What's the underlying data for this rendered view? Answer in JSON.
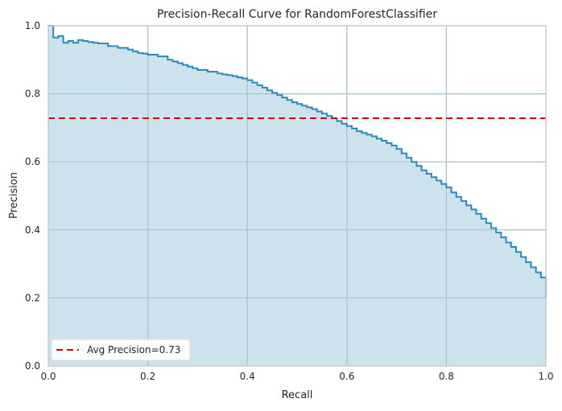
{
  "chart_data": {
    "type": "area",
    "title": "Precision-Recall Curve for RandomForestClassifier",
    "xlabel": "Recall",
    "ylabel": "Precision",
    "xlim": [
      0.0,
      1.0
    ],
    "ylim": [
      0.0,
      1.0
    ],
    "xticks": [
      "0.0",
      "0.2",
      "0.4",
      "0.6",
      "0.8",
      "1.0"
    ],
    "yticks": [
      "0.0",
      "0.2",
      "0.4",
      "0.6",
      "0.8",
      "1.0"
    ],
    "grid": true,
    "step": "post",
    "legend_position": "lower-left",
    "series": [
      {
        "type": "area-step",
        "color": "#2a8bb8",
        "fill_color": "#cde2ec",
        "x": [
          0.0,
          0.01,
          0.02,
          0.03,
          0.04,
          0.05,
          0.06,
          0.07,
          0.08,
          0.09,
          0.1,
          0.12,
          0.14,
          0.16,
          0.17,
          0.18,
          0.19,
          0.2,
          0.22,
          0.24,
          0.25,
          0.26,
          0.27,
          0.28,
          0.29,
          0.3,
          0.32,
          0.34,
          0.35,
          0.36,
          0.37,
          0.38,
          0.39,
          0.4,
          0.41,
          0.42,
          0.43,
          0.44,
          0.45,
          0.46,
          0.47,
          0.48,
          0.49,
          0.5,
          0.51,
          0.52,
          0.53,
          0.54,
          0.55,
          0.56,
          0.57,
          0.58,
          0.59,
          0.6,
          0.61,
          0.62,
          0.63,
          0.64,
          0.65,
          0.66,
          0.67,
          0.68,
          0.69,
          0.7,
          0.71,
          0.72,
          0.73,
          0.74,
          0.75,
          0.76,
          0.77,
          0.78,
          0.79,
          0.8,
          0.81,
          0.82,
          0.83,
          0.84,
          0.85,
          0.86,
          0.87,
          0.88,
          0.89,
          0.9,
          0.91,
          0.92,
          0.93,
          0.94,
          0.95,
          0.96,
          0.97,
          0.98,
          0.99,
          1.0
        ],
        "y": [
          1.0,
          0.965,
          0.97,
          0.95,
          0.955,
          0.95,
          0.958,
          0.955,
          0.952,
          0.95,
          0.948,
          0.94,
          0.935,
          0.93,
          0.925,
          0.92,
          0.918,
          0.915,
          0.91,
          0.9,
          0.895,
          0.89,
          0.885,
          0.88,
          0.875,
          0.87,
          0.865,
          0.86,
          0.857,
          0.855,
          0.852,
          0.848,
          0.845,
          0.84,
          0.833,
          0.825,
          0.818,
          0.81,
          0.803,
          0.796,
          0.789,
          0.782,
          0.775,
          0.77,
          0.765,
          0.76,
          0.755,
          0.748,
          0.742,
          0.735,
          0.728,
          0.72,
          0.712,
          0.705,
          0.698,
          0.69,
          0.685,
          0.68,
          0.675,
          0.668,
          0.662,
          0.655,
          0.648,
          0.638,
          0.625,
          0.612,
          0.6,
          0.588,
          0.575,
          0.565,
          0.555,
          0.545,
          0.535,
          0.525,
          0.51,
          0.497,
          0.485,
          0.472,
          0.46,
          0.447,
          0.433,
          0.42,
          0.405,
          0.392,
          0.378,
          0.363,
          0.35,
          0.335,
          0.32,
          0.305,
          0.29,
          0.275,
          0.26,
          0.2
        ]
      },
      {
        "name": "Avg Precision=0.73",
        "type": "hline",
        "value": 0.728,
        "color": "#cc0000",
        "linestyle": "dashed"
      }
    ]
  }
}
